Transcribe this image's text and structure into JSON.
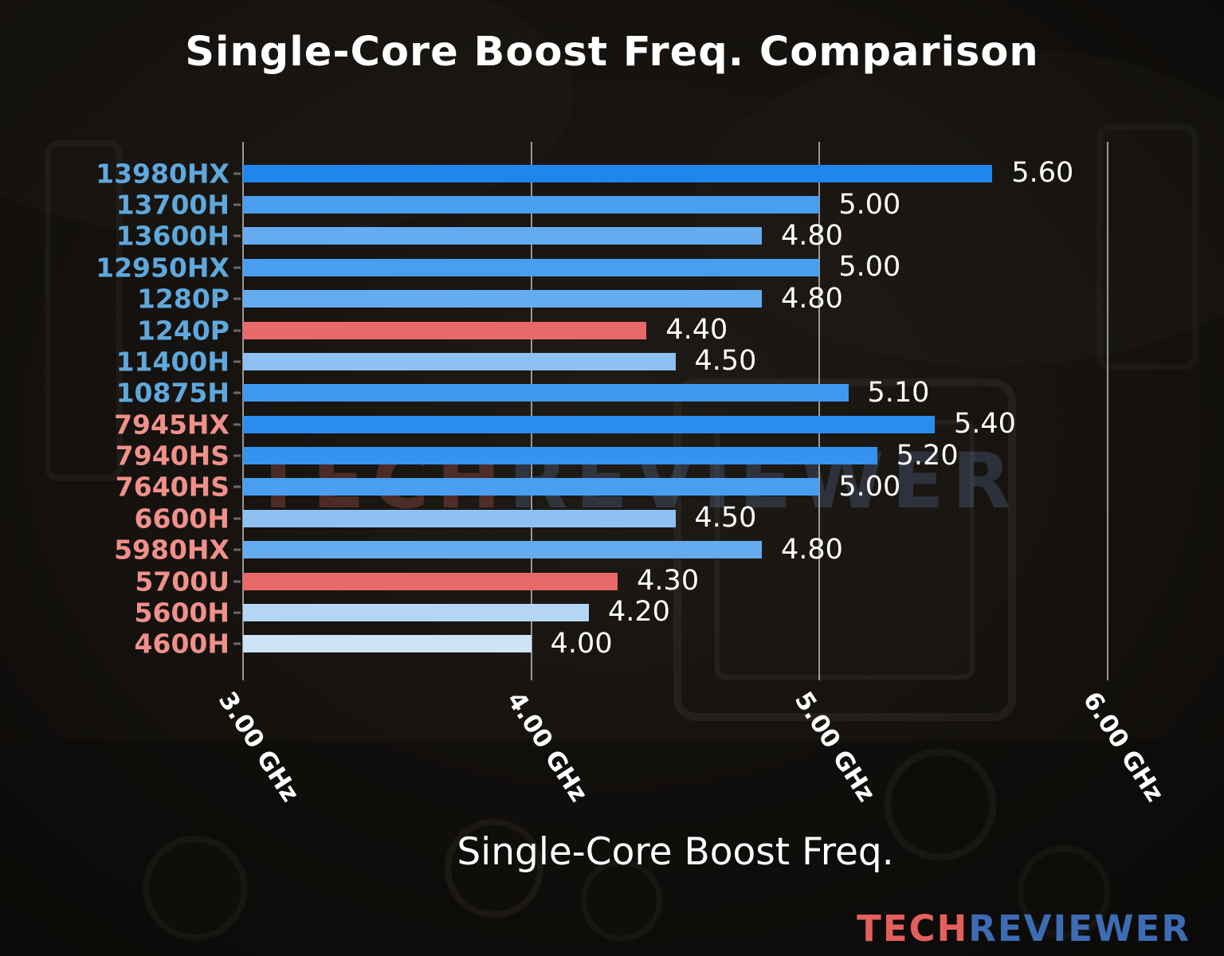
{
  "page": {
    "title": "Single-Core Boost Freq. Comparison"
  },
  "watermark": {
    "part1": "TECH",
    "part2": "REVIEWER"
  },
  "logo": {
    "part1": "TECH",
    "part2": "REVIEWER"
  },
  "colors": {
    "highlight_red": "#e96868",
    "intel_label_blue": "#5fa8dc",
    "amd_label_salmon": "#f0908a",
    "value_text": "#ffffff",
    "gridline": "#c3c3c3"
  },
  "chart_data": {
    "type": "bar",
    "orientation": "horizontal",
    "title": "Single-Core Boost Freq. Comparison",
    "xlabel": "Single-Core Boost Freq.",
    "ylabel": "",
    "unit": "GHz",
    "xlim": [
      3.0,
      6.0
    ],
    "grid": true,
    "legend": false,
    "categories": [
      "13980HX",
      "13700H",
      "13600H",
      "12950HX",
      "1280P",
      "1240P",
      "11400H",
      "10875H",
      "7945HX",
      "7940HS",
      "7640HS",
      "6600H",
      "5980HX",
      "5700U",
      "5600H",
      "4600H"
    ],
    "values": [
      5.6,
      5.0,
      4.8,
      5.0,
      4.8,
      4.4,
      4.5,
      5.1,
      5.4,
      5.2,
      5.0,
      4.5,
      4.8,
      4.3,
      4.2,
      4.0
    ],
    "value_labels": [
      "5.60",
      "5.00",
      "4.80",
      "5.00",
      "4.80",
      "4.40",
      "4.50",
      "5.10",
      "5.40",
      "5.20",
      "5.00",
      "4.50",
      "4.80",
      "4.30",
      "4.20",
      "4.00"
    ],
    "bar_colors": [
      "#1f86ee",
      "#4a9ef0",
      "#65abf0",
      "#4a9ef0",
      "#65abf0",
      "#e96868",
      "#8fc0f3",
      "#3f98f0",
      "#2a8cef",
      "#3593ef",
      "#4a9ef0",
      "#8fc0f3",
      "#65abf0",
      "#e96868",
      "#b5d5f5",
      "#cfe3f7"
    ],
    "label_colors": [
      "#5fa8dc",
      "#5fa8dc",
      "#5fa8dc",
      "#5fa8dc",
      "#5fa8dc",
      "#5fa8dc",
      "#5fa8dc",
      "#5fa8dc",
      "#f0908a",
      "#f0908a",
      "#f0908a",
      "#f0908a",
      "#f0908a",
      "#f0908a",
      "#f0908a",
      "#f0908a"
    ],
    "xticks": [
      {
        "value": 3.0,
        "label": "3.00 GHz"
      },
      {
        "value": 4.0,
        "label": "4.00 GHz"
      },
      {
        "value": 5.0,
        "label": "5.00 GHz"
      },
      {
        "value": 6.0,
        "label": "6.00 GHz"
      }
    ]
  }
}
